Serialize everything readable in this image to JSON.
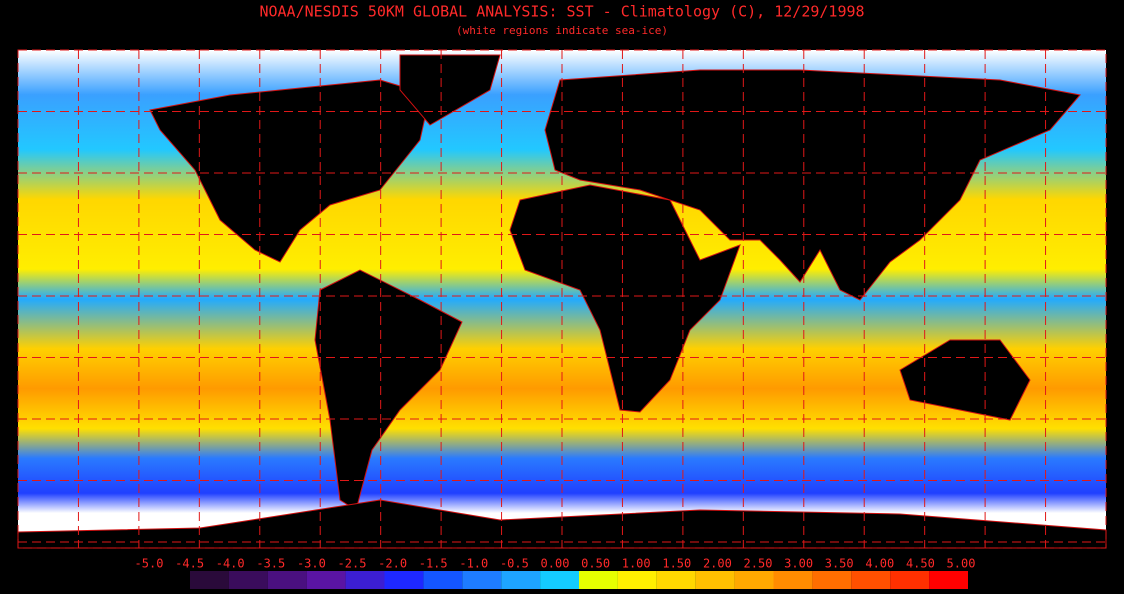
{
  "header": {
    "title": "NOAA/NESDIS 50KM GLOBAL ANALYSIS: SST - Climatology (C), 12/29/1998",
    "subtitle": "(white regions indicate sea-ice)"
  },
  "legend": {
    "ticks": [
      {
        "value": -5.0,
        "label": "-5.0"
      },
      {
        "value": -4.5,
        "label": "-4.5"
      },
      {
        "value": -4.0,
        "label": "-4.0"
      },
      {
        "value": -3.5,
        "label": "-3.5"
      },
      {
        "value": -3.0,
        "label": "-3.0"
      },
      {
        "value": -2.5,
        "label": "-2.5"
      },
      {
        "value": -2.0,
        "label": "-2.0"
      },
      {
        "value": -1.5,
        "label": "-1.5"
      },
      {
        "value": -1.0,
        "label": "-1.0"
      },
      {
        "value": -0.5,
        "label": "-0.5"
      },
      {
        "value": 0.0,
        "label": "0.00"
      },
      {
        "value": 0.5,
        "label": "0.50"
      },
      {
        "value": 1.0,
        "label": "1.00"
      },
      {
        "value": 1.5,
        "label": "1.50"
      },
      {
        "value": 2.0,
        "label": "2.00"
      },
      {
        "value": 2.5,
        "label": "2.50"
      },
      {
        "value": 3.0,
        "label": "3.00"
      },
      {
        "value": 3.5,
        "label": "3.50"
      },
      {
        "value": 4.0,
        "label": "4.00"
      },
      {
        "value": 4.5,
        "label": "4.50"
      },
      {
        "value": 5.0,
        "label": "5.00"
      }
    ],
    "colors": [
      "#2a0a3a",
      "#3a0c5c",
      "#4a1080",
      "#5a14a4",
      "#3c1ed2",
      "#1e28ff",
      "#1456ff",
      "#1e7cff",
      "#1ea4ff",
      "#14ccff",
      "#e6ff00",
      "#fff000",
      "#ffd800",
      "#ffc000",
      "#ffa800",
      "#ff8c00",
      "#ff6e00",
      "#ff5000",
      "#ff3000",
      "#ff0000"
    ]
  }
}
